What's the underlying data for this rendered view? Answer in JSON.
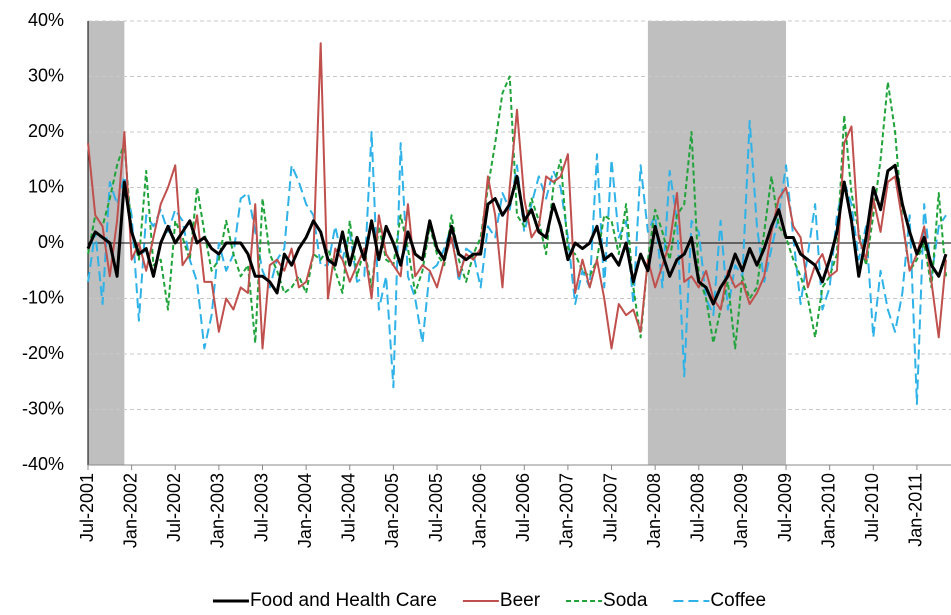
{
  "chart_data": {
    "type": "line",
    "categories": [
      "Jul-2001",
      null,
      null,
      null,
      null,
      null,
      "Jan-2002",
      null,
      null,
      null,
      null,
      null,
      "Jul-2002",
      null,
      null,
      null,
      null,
      null,
      "Jan-2003",
      null,
      null,
      null,
      null,
      null,
      "Jul-2003",
      null,
      null,
      null,
      null,
      null,
      "Jan-2004",
      null,
      null,
      null,
      null,
      null,
      "Jul-2004",
      null,
      null,
      null,
      null,
      null,
      "Jan-2005",
      null,
      null,
      null,
      null,
      null,
      "Jul-2005",
      null,
      null,
      null,
      null,
      null,
      "Jan-2006",
      null,
      null,
      null,
      null,
      null,
      "Jul-2006",
      null,
      null,
      null,
      null,
      null,
      "Jan-2007",
      null,
      null,
      null,
      null,
      null,
      "Jul-2007",
      null,
      null,
      null,
      null,
      null,
      "Jan-2008",
      null,
      null,
      null,
      null,
      null,
      "Jul-2008",
      null,
      null,
      null,
      null,
      null,
      "Jan-2009",
      null,
      null,
      null,
      null,
      null,
      "Jul-2009",
      null,
      null,
      null,
      null,
      null,
      "Jan-2010",
      null,
      null,
      null,
      null,
      null,
      "Jul-2010",
      null,
      null,
      null,
      null,
      null,
      "Jan-2011",
      null,
      null,
      null,
      null
    ],
    "series": [
      {
        "name": "Food and Health Care",
        "color": "#000000",
        "width": 3,
        "line_style": "solid",
        "values": [
          -1,
          2,
          1,
          0,
          -6,
          11,
          2,
          -2,
          -1,
          -6,
          0,
          3,
          0,
          2,
          4,
          0,
          1,
          -1,
          -2,
          0,
          0,
          0,
          -2,
          -6,
          -6,
          -7,
          -9,
          -2,
          -4,
          -1,
          1,
          4,
          2,
          -3,
          -4,
          2,
          -4,
          1,
          -3,
          4,
          -3,
          3,
          0,
          -4,
          2,
          -2,
          -3,
          4,
          -1,
          -3,
          3,
          -2,
          -3,
          -2,
          -2,
          7,
          8,
          5,
          7,
          12,
          4,
          6,
          2,
          1,
          7,
          3,
          -3,
          0,
          -1,
          0,
          3,
          -3,
          -2,
          -4,
          0,
          -7,
          -2,
          -5,
          3,
          -2,
          -6,
          -3,
          -2,
          1,
          -7,
          -8,
          -11,
          -8,
          -6,
          -2,
          -5,
          -1,
          -4,
          -1,
          3,
          6,
          1,
          1,
          -2,
          -3,
          -4,
          -7,
          -3,
          2,
          11,
          4,
          -6,
          1,
          10,
          6,
          13,
          14,
          7,
          2,
          -2,
          1,
          -4,
          -6,
          -2
        ]
      },
      {
        "name": "Beer",
        "color": "#c0504d",
        "width": 2,
        "line_style": "solid",
        "values": [
          18,
          5,
          3,
          -6,
          4,
          20,
          -3,
          0,
          -5,
          1,
          7,
          10,
          14,
          -4,
          -2,
          5,
          -7,
          -7,
          -16,
          -10,
          -12,
          -8,
          -9,
          7,
          -19,
          -4,
          -3,
          -5,
          -1,
          -8,
          -7,
          -2,
          36,
          -10,
          -1,
          -3,
          -7,
          -4,
          -1,
          -10,
          5,
          -2,
          -4,
          -6,
          7,
          -6,
          -4,
          -5,
          -8,
          -3,
          1,
          -6,
          -2,
          -3,
          -1,
          12,
          5,
          -8,
          10,
          24,
          8,
          1,
          3,
          12,
          11,
          12,
          16,
          -9,
          -3,
          -8,
          -3,
          -10,
          -19,
          -11,
          -13,
          -12,
          -16,
          -3,
          -8,
          -4,
          0,
          9,
          -7,
          -6,
          -8,
          -5,
          -10,
          -12,
          -5,
          -8,
          -7,
          -11,
          -9,
          -6,
          2,
          8,
          10,
          3,
          1,
          -8,
          -4,
          -2,
          -6,
          -5,
          18,
          21,
          1,
          -3,
          8,
          2,
          11,
          12,
          4,
          -5,
          -2,
          3,
          -7,
          -17,
          -3
        ]
      },
      {
        "name": "Soda",
        "color": "#1fa33a",
        "width": 2,
        "line_style": "short-dash",
        "values": [
          -2,
          5,
          3,
          8,
          14,
          18,
          2,
          -3,
          13,
          -4,
          -3,
          -12,
          4,
          1,
          -3,
          10,
          2,
          -5,
          -3,
          4,
          -2,
          -6,
          -4,
          -18,
          8,
          -2,
          -5,
          -9,
          -8,
          -6,
          -9,
          -2,
          -3,
          -1,
          -5,
          -9,
          4,
          -6,
          -1,
          -8,
          3,
          -3,
          -4,
          5,
          -1,
          -9,
          -5,
          3,
          -2,
          -4,
          5,
          -3,
          -7,
          -2,
          1,
          10,
          18,
          27,
          30,
          5,
          3,
          8,
          4,
          -2,
          10,
          15,
          -1,
          -2,
          -5,
          -6,
          -3,
          5,
          4,
          -2,
          7,
          -8,
          -17,
          -3,
          6,
          2,
          -3,
          5,
          7,
          20,
          -6,
          -10,
          -18,
          -12,
          -7,
          -19,
          -6,
          -10,
          -8,
          2,
          12,
          3,
          1,
          -3,
          -6,
          -10,
          -17,
          -8,
          -6,
          -2,
          23,
          9,
          2,
          -4,
          5,
          15,
          29,
          20,
          4,
          -5,
          -3,
          0,
          -8,
          9,
          -6
        ]
      },
      {
        "name": "Coffee",
        "color": "#2eb2e8",
        "width": 2,
        "line_style": "long-dash",
        "values": [
          -7,
          2,
          -11,
          11,
          7,
          12,
          5,
          -14,
          5,
          3,
          6,
          2,
          6,
          4,
          -3,
          -7,
          -19,
          -13,
          0,
          -5,
          -2,
          8,
          9,
          2,
          -5,
          -8,
          -3,
          -1,
          14,
          11,
          7,
          5,
          -4,
          -4,
          3,
          -3,
          2,
          -7,
          -6,
          20,
          -12,
          -6,
          -26,
          18,
          -6,
          -10,
          -18,
          -5,
          -4,
          -1,
          3,
          -7,
          -1,
          -2,
          -8,
          3,
          1,
          9,
          6,
          14,
          2,
          7,
          12,
          8,
          13,
          10,
          1,
          -11,
          -5,
          -8,
          16,
          -8,
          15,
          1,
          4,
          -11,
          14,
          2,
          5,
          -8,
          13,
          4,
          -24,
          4,
          2,
          -10,
          -13,
          4,
          -12,
          -4,
          -6,
          22,
          3,
          -7,
          -1,
          5,
          14,
          1,
          -11,
          -2,
          7,
          -12,
          -8,
          5,
          11,
          7,
          -3,
          3,
          -17,
          -5,
          -12,
          -16,
          -9,
          5,
          -29,
          7,
          -6,
          3,
          5
        ]
      }
    ],
    "shaded_ranges": [
      [
        0,
        5
      ],
      [
        77,
        96
      ]
    ],
    "shade_color": "#bfbfbf",
    "ylim": [
      -40,
      40
    ],
    "yticks": [
      {
        "value": -40,
        "label": "-40%"
      },
      {
        "value": -30,
        "label": "-30%"
      },
      {
        "value": -20,
        "label": "-20%"
      },
      {
        "value": -10,
        "label": "-10%"
      },
      {
        "value": 0,
        "label": "0%"
      },
      {
        "value": 10,
        "label": "10%"
      },
      {
        "value": 20,
        "label": "20%"
      },
      {
        "value": 30,
        "label": "30%"
      },
      {
        "value": 40,
        "label": "40%"
      }
    ],
    "grid": true,
    "legend": "bottom"
  }
}
